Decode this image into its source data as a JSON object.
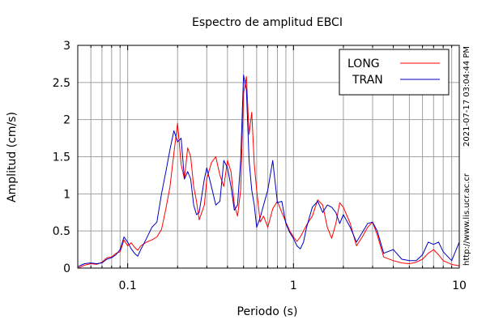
{
  "chart_data": {
    "type": "line",
    "title": "Espectro de amplitud EBCI",
    "xlabel": "Periodo (s)",
    "ylabel": "Amplitud (cm/s)",
    "x_scale": "log",
    "xlim": [
      0.05,
      10
    ],
    "ylim": [
      0,
      3
    ],
    "x_ticks": [
      0.1,
      1,
      10
    ],
    "x_tick_labels": [
      "0.1",
      "1",
      "10"
    ],
    "y_ticks": [
      0,
      0.5,
      1,
      1.5,
      2,
      2.5,
      3
    ],
    "y_tick_labels": [
      "0",
      "0.5",
      "1",
      "1.5",
      "2",
      "2.5",
      "3"
    ],
    "grid": true,
    "legend_position": "top-right",
    "annotations": {
      "timestamp": "2021-07-17 03:04:44 PM",
      "url": "http://www.lis.ucr.ac.cr"
    },
    "series": [
      {
        "name": "LONG",
        "color": "#ff0000",
        "points": [
          [
            0.05,
            0.0
          ],
          [
            0.055,
            0.04
          ],
          [
            0.06,
            0.06
          ],
          [
            0.065,
            0.05
          ],
          [
            0.07,
            0.08
          ],
          [
            0.075,
            0.14
          ],
          [
            0.08,
            0.15
          ],
          [
            0.085,
            0.2
          ],
          [
            0.09,
            0.22
          ],
          [
            0.095,
            0.38
          ],
          [
            0.1,
            0.3
          ],
          [
            0.105,
            0.34
          ],
          [
            0.11,
            0.28
          ],
          [
            0.115,
            0.24
          ],
          [
            0.12,
            0.3
          ],
          [
            0.13,
            0.35
          ],
          [
            0.14,
            0.38
          ],
          [
            0.15,
            0.42
          ],
          [
            0.16,
            0.52
          ],
          [
            0.17,
            0.8
          ],
          [
            0.18,
            1.1
          ],
          [
            0.19,
            1.55
          ],
          [
            0.2,
            1.95
          ],
          [
            0.21,
            1.4
          ],
          [
            0.22,
            1.2
          ],
          [
            0.23,
            1.62
          ],
          [
            0.24,
            1.5
          ],
          [
            0.25,
            1.1
          ],
          [
            0.26,
            0.9
          ],
          [
            0.27,
            0.65
          ],
          [
            0.29,
            0.85
          ],
          [
            0.3,
            1.2
          ],
          [
            0.32,
            1.42
          ],
          [
            0.34,
            1.5
          ],
          [
            0.36,
            1.25
          ],
          [
            0.38,
            1.1
          ],
          [
            0.4,
            1.45
          ],
          [
            0.42,
            1.3
          ],
          [
            0.44,
            0.85
          ],
          [
            0.46,
            0.7
          ],
          [
            0.48,
            1.05
          ],
          [
            0.5,
            2.35
          ],
          [
            0.52,
            2.58
          ],
          [
            0.54,
            1.8
          ],
          [
            0.56,
            2.1
          ],
          [
            0.58,
            1.4
          ],
          [
            0.6,
            1.05
          ],
          [
            0.63,
            0.62
          ],
          [
            0.66,
            0.7
          ],
          [
            0.7,
            0.55
          ],
          [
            0.75,
            0.8
          ],
          [
            0.8,
            0.9
          ],
          [
            0.85,
            0.75
          ],
          [
            0.9,
            0.62
          ],
          [
            0.95,
            0.5
          ],
          [
            1.0,
            0.42
          ],
          [
            1.05,
            0.36
          ],
          [
            1.1,
            0.42
          ],
          [
            1.15,
            0.5
          ],
          [
            1.2,
            0.58
          ],
          [
            1.3,
            0.7
          ],
          [
            1.4,
            0.92
          ],
          [
            1.5,
            0.85
          ],
          [
            1.6,
            0.55
          ],
          [
            1.7,
            0.4
          ],
          [
            1.8,
            0.6
          ],
          [
            1.9,
            0.88
          ],
          [
            2.0,
            0.82
          ],
          [
            2.2,
            0.6
          ],
          [
            2.4,
            0.3
          ],
          [
            2.6,
            0.42
          ],
          [
            2.8,
            0.55
          ],
          [
            3.0,
            0.62
          ],
          [
            3.2,
            0.45
          ],
          [
            3.5,
            0.15
          ],
          [
            4.0,
            0.1
          ],
          [
            4.5,
            0.07
          ],
          [
            5.0,
            0.06
          ],
          [
            5.5,
            0.08
          ],
          [
            6.0,
            0.12
          ],
          [
            6.5,
            0.2
          ],
          [
            7.0,
            0.25
          ],
          [
            7.5,
            0.18
          ],
          [
            8.0,
            0.1
          ],
          [
            9.0,
            0.05
          ],
          [
            10.0,
            0.03
          ]
        ]
      },
      {
        "name": "TRAN",
        "color": "#0000c0",
        "points": [
          [
            0.05,
            0.02
          ],
          [
            0.055,
            0.06
          ],
          [
            0.06,
            0.07
          ],
          [
            0.065,
            0.06
          ],
          [
            0.07,
            0.07
          ],
          [
            0.075,
            0.12
          ],
          [
            0.08,
            0.14
          ],
          [
            0.085,
            0.18
          ],
          [
            0.09,
            0.25
          ],
          [
            0.095,
            0.42
          ],
          [
            0.1,
            0.35
          ],
          [
            0.105,
            0.26
          ],
          [
            0.11,
            0.2
          ],
          [
            0.115,
            0.16
          ],
          [
            0.12,
            0.25
          ],
          [
            0.13,
            0.4
          ],
          [
            0.14,
            0.55
          ],
          [
            0.15,
            0.62
          ],
          [
            0.16,
            1.0
          ],
          [
            0.17,
            1.3
          ],
          [
            0.18,
            1.6
          ],
          [
            0.19,
            1.85
          ],
          [
            0.2,
            1.7
          ],
          [
            0.21,
            1.75
          ],
          [
            0.22,
            1.2
          ],
          [
            0.23,
            1.3
          ],
          [
            0.24,
            1.2
          ],
          [
            0.25,
            0.85
          ],
          [
            0.26,
            0.72
          ],
          [
            0.27,
            0.75
          ],
          [
            0.29,
            1.2
          ],
          [
            0.3,
            1.35
          ],
          [
            0.32,
            1.1
          ],
          [
            0.34,
            0.85
          ],
          [
            0.36,
            0.9
          ],
          [
            0.38,
            1.45
          ],
          [
            0.4,
            1.35
          ],
          [
            0.42,
            1.1
          ],
          [
            0.44,
            0.78
          ],
          [
            0.46,
            0.85
          ],
          [
            0.48,
            1.45
          ],
          [
            0.5,
            2.6
          ],
          [
            0.52,
            2.4
          ],
          [
            0.54,
            1.45
          ],
          [
            0.56,
            1.05
          ],
          [
            0.58,
            0.85
          ],
          [
            0.6,
            0.55
          ],
          [
            0.63,
            0.68
          ],
          [
            0.66,
            0.85
          ],
          [
            0.7,
            1.05
          ],
          [
            0.75,
            1.45
          ],
          [
            0.8,
            0.88
          ],
          [
            0.85,
            0.9
          ],
          [
            0.9,
            0.6
          ],
          [
            0.95,
            0.48
          ],
          [
            1.0,
            0.4
          ],
          [
            1.05,
            0.3
          ],
          [
            1.1,
            0.26
          ],
          [
            1.15,
            0.35
          ],
          [
            1.2,
            0.55
          ],
          [
            1.3,
            0.82
          ],
          [
            1.4,
            0.9
          ],
          [
            1.5,
            0.75
          ],
          [
            1.6,
            0.85
          ],
          [
            1.7,
            0.82
          ],
          [
            1.8,
            0.75
          ],
          [
            1.9,
            0.6
          ],
          [
            2.0,
            0.72
          ],
          [
            2.2,
            0.55
          ],
          [
            2.4,
            0.35
          ],
          [
            2.6,
            0.48
          ],
          [
            2.8,
            0.6
          ],
          [
            3.0,
            0.62
          ],
          [
            3.2,
            0.5
          ],
          [
            3.5,
            0.2
          ],
          [
            4.0,
            0.25
          ],
          [
            4.5,
            0.12
          ],
          [
            5.0,
            0.1
          ],
          [
            5.5,
            0.1
          ],
          [
            6.0,
            0.18
          ],
          [
            6.5,
            0.35
          ],
          [
            7.0,
            0.32
          ],
          [
            7.5,
            0.35
          ],
          [
            8.0,
            0.22
          ],
          [
            9.0,
            0.1
          ],
          [
            10.0,
            0.35
          ]
        ]
      }
    ]
  }
}
